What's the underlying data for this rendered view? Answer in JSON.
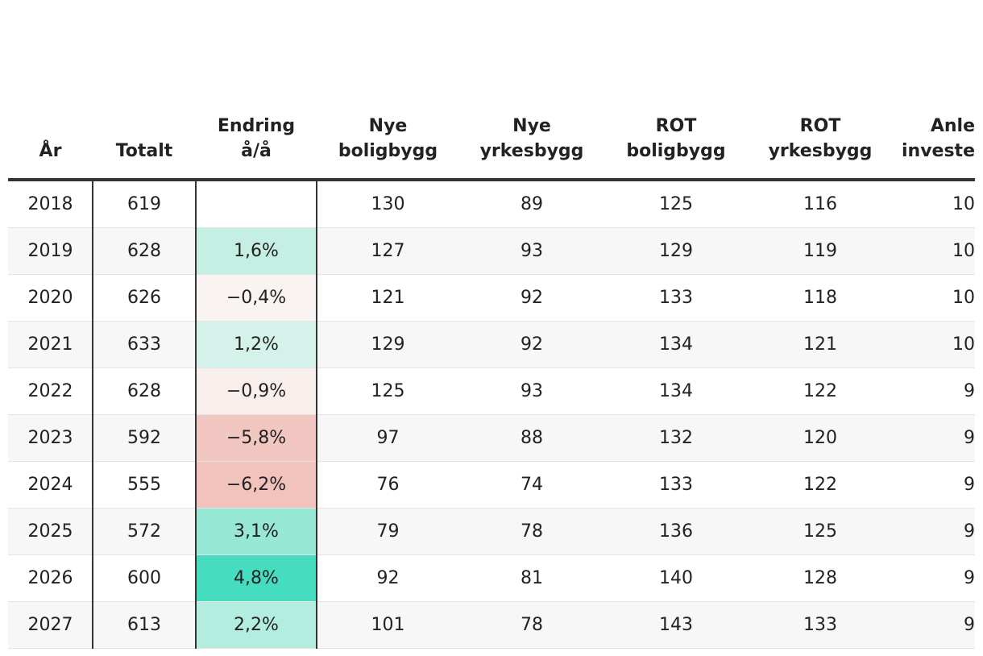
{
  "table": {
    "columns": [
      [
        "År"
      ],
      [
        "Totalt"
      ],
      [
        "Endring",
        "å/å"
      ],
      [
        "Nye",
        "boligbygg"
      ],
      [
        "Nye",
        "yrkesbygg"
      ],
      [
        "ROT",
        "boligbygg"
      ],
      [
        "ROT",
        "yrkesbygg"
      ],
      [
        "Anle",
        "investe"
      ]
    ],
    "rows": [
      [
        "2018",
        "619",
        null,
        "130",
        "89",
        "125",
        "116",
        "10"
      ],
      [
        "2019",
        "628",
        "1,6%",
        "127",
        "93",
        "129",
        "119",
        "10"
      ],
      [
        "2020",
        "626",
        "−0,4%",
        "121",
        "92",
        "133",
        "118",
        "10"
      ],
      [
        "2021",
        "633",
        "1,2%",
        "129",
        "92",
        "134",
        "121",
        "10"
      ],
      [
        "2022",
        "628",
        "−0,9%",
        "125",
        "93",
        "134",
        "122",
        "9"
      ],
      [
        "2023",
        "592",
        "−5,8%",
        "97",
        "88",
        "132",
        "120",
        "9"
      ],
      [
        "2024",
        "555",
        "−6,2%",
        "76",
        "74",
        "133",
        "122",
        "9"
      ],
      [
        "2025",
        "572",
        "3,1%",
        "79",
        "78",
        "136",
        "125",
        "9"
      ],
      [
        "2026",
        "600",
        "4,8%",
        "92",
        "81",
        "140",
        "128",
        "9"
      ],
      [
        "2027",
        "613",
        "2,2%",
        "101",
        "78",
        "143",
        "133",
        "9"
      ]
    ],
    "change_colors": [
      null,
      "#c6efe4",
      "#f9f3f2",
      "#d5f2ea",
      "#f8eeec",
      "#f2c7c1",
      "#f2c2bc",
      "#96e8d4",
      "#46dcc0",
      "#b3eddf"
    ]
  }
}
